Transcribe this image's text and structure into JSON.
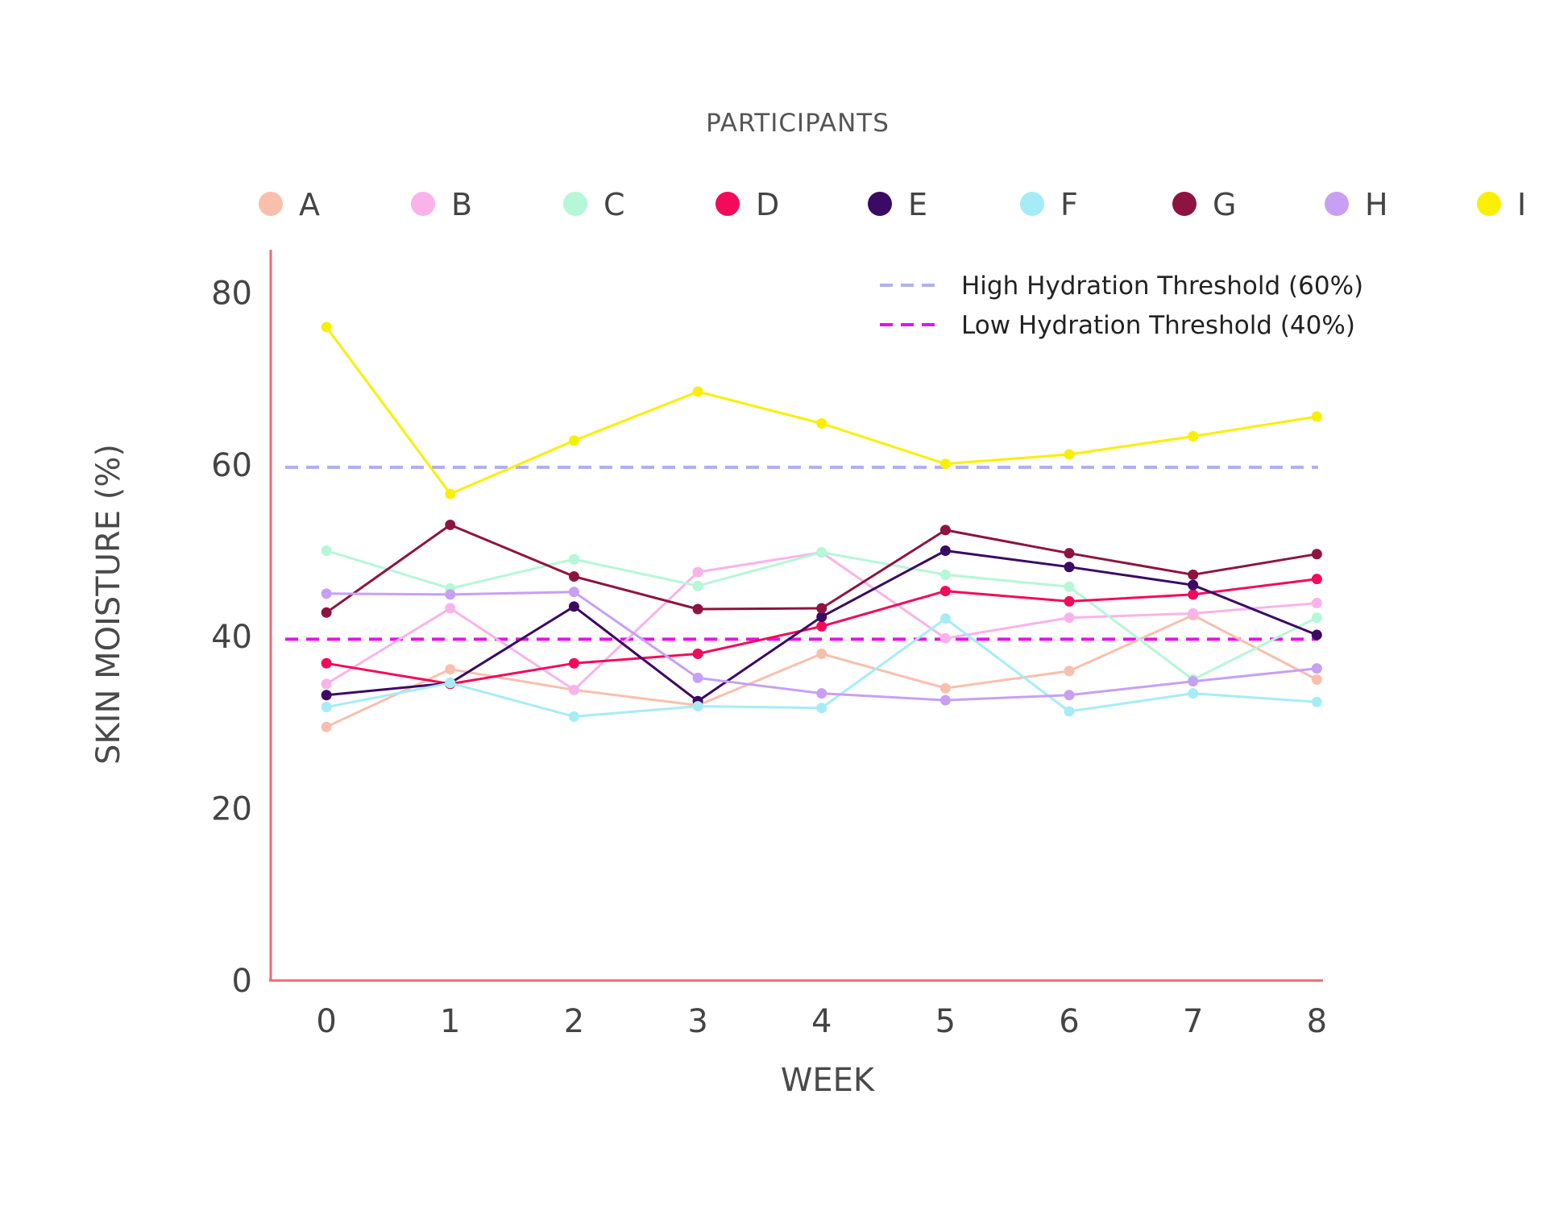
{
  "chart_data": {
    "type": "line",
    "title": "",
    "legend_title": "PARTICIPANTS",
    "legend_position": "top",
    "xlabel": "WEEK",
    "ylabel": "SKIN MOISTURE (%)",
    "x": [
      0,
      1,
      2,
      3,
      4,
      5,
      6,
      7,
      8
    ],
    "x_ticks": [
      "0",
      "1",
      "2",
      "3",
      "4",
      "5",
      "6",
      "7",
      "8"
    ],
    "y_ticks": [
      "0",
      "20",
      "40",
      "60",
      "80"
    ],
    "xlim": [
      -0.45,
      8.05
    ],
    "ylim": [
      0,
      85
    ],
    "grid": false,
    "axis_color": "#e86b76",
    "series": [
      {
        "name": "A",
        "color": "#f9bfad",
        "values": [
          29.5,
          36.2,
          33.8,
          32.0,
          38.0,
          34.0,
          36.0,
          42.5,
          35.0
        ]
      },
      {
        "name": "B",
        "color": "#f9b3ea",
        "values": [
          34.5,
          43.3,
          33.8,
          47.5,
          49.8,
          39.8,
          42.2,
          42.7,
          43.9
        ]
      },
      {
        "name": "C",
        "color": "#b5f7d6",
        "values": [
          50.0,
          45.6,
          49.0,
          45.9,
          49.8,
          47.2,
          45.8,
          35.0,
          42.2
        ]
      },
      {
        "name": "D",
        "color": "#f40a5a",
        "values": [
          36.9,
          34.5,
          36.9,
          38.0,
          41.2,
          45.3,
          44.1,
          44.9,
          46.7
        ]
      },
      {
        "name": "E",
        "color": "#3b0a64",
        "values": [
          33.2,
          34.6,
          43.5,
          32.5,
          42.3,
          50.0,
          48.1,
          46.0,
          40.2
        ]
      },
      {
        "name": "F",
        "color": "#a6ecf7",
        "values": [
          31.8,
          34.6,
          30.7,
          31.9,
          31.7,
          42.1,
          31.3,
          33.4,
          32.4
        ]
      },
      {
        "name": "G",
        "color": "#8e1440",
        "values": [
          42.8,
          53.0,
          47.0,
          43.2,
          43.3,
          52.4,
          49.7,
          47.2,
          49.6
        ]
      },
      {
        "name": "H",
        "color": "#c7a0f4",
        "values": [
          45.0,
          44.9,
          45.2,
          35.2,
          33.4,
          32.6,
          33.2,
          34.8,
          36.3
        ]
      },
      {
        "name": "I",
        "color": "#f8f000",
        "values": [
          76.0,
          56.6,
          62.8,
          68.5,
          64.8,
          60.1,
          61.2,
          63.3,
          65.6
        ]
      }
    ],
    "reference_lines": [
      {
        "label": "High Hydration Threshold (60%)",
        "value": 59.7,
        "color": "#aeb0f5",
        "dash": "dashed"
      },
      {
        "label": "Low Hydration Threshold (40%)",
        "value": 39.7,
        "color": "#e612ee",
        "dash": "dashed"
      }
    ]
  }
}
